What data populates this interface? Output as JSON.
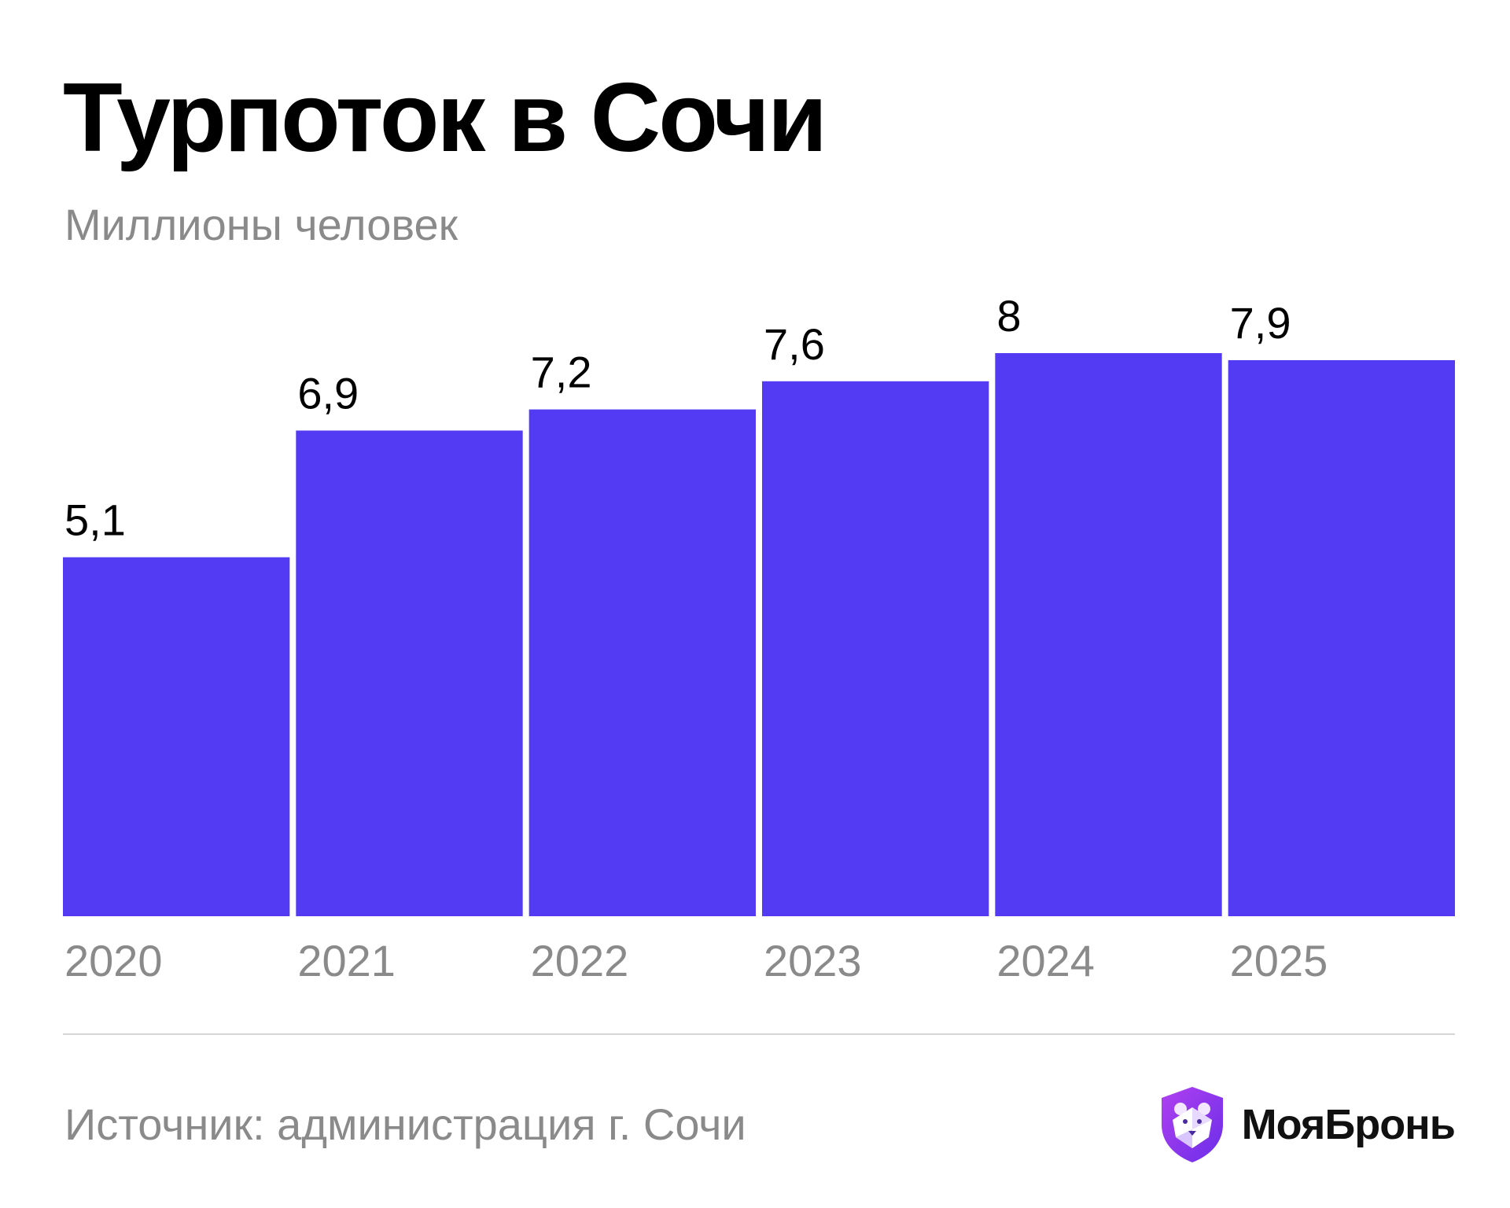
{
  "chart_data": {
    "type": "bar",
    "title": "Турпоток в Сочи",
    "subtitle": "Миллионы человек",
    "categories": [
      "2020",
      "2021",
      "2022",
      "2023",
      "2024",
      "2025"
    ],
    "values": [
      5.1,
      6.9,
      7.2,
      7.6,
      8,
      7.9
    ],
    "data_labels": [
      "5,1",
      "6,9",
      "7,2",
      "7,6",
      "8",
      "7,9"
    ],
    "ylim": [
      0,
      8
    ],
    "grid": false,
    "bar_color": "#523BF3"
  },
  "footer": {
    "source": "Источник: администрация г. Сочи",
    "brand_name": "МояБронь",
    "brand_logo_icon": "bear-shield-icon"
  },
  "colors": {
    "text": "#000000",
    "muted": "#8a8a8a",
    "divider": "#d6d6d6"
  }
}
